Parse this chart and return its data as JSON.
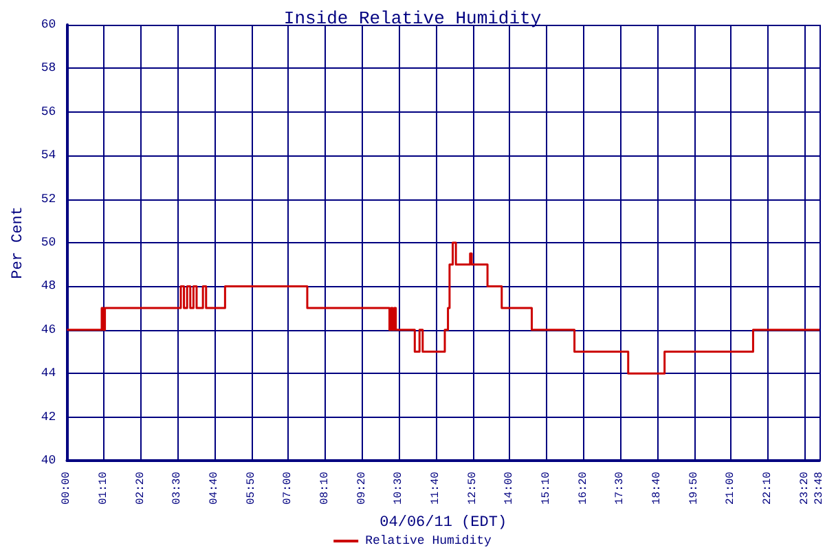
{
  "chart_data": {
    "type": "step",
    "title": "Inside Relative Humidity",
    "xlabel": "04/06/11 (EDT)",
    "ylabel": "Per Cent",
    "xlim": [
      0,
      23.8
    ],
    "xticks": [
      {
        "value": 0,
        "label": "00:00"
      },
      {
        "value": 1.1667,
        "label": "01:10"
      },
      {
        "value": 2.3333,
        "label": "02:20"
      },
      {
        "value": 3.5,
        "label": "03:30"
      },
      {
        "value": 4.6667,
        "label": "04:40"
      },
      {
        "value": 5.8333,
        "label": "05:50"
      },
      {
        "value": 7,
        "label": "07:00"
      },
      {
        "value": 8.1667,
        "label": "08:10"
      },
      {
        "value": 9.3333,
        "label": "09:20"
      },
      {
        "value": 10.5,
        "label": "10:30"
      },
      {
        "value": 11.6667,
        "label": "11:40"
      },
      {
        "value": 12.8333,
        "label": "12:50"
      },
      {
        "value": 14,
        "label": "14:00"
      },
      {
        "value": 15.1667,
        "label": "15:10"
      },
      {
        "value": 16.3333,
        "label": "16:20"
      },
      {
        "value": 17.5,
        "label": "17:30"
      },
      {
        "value": 18.6667,
        "label": "18:40"
      },
      {
        "value": 19.8333,
        "label": "19:50"
      },
      {
        "value": 21,
        "label": "21:00"
      },
      {
        "value": 22.1667,
        "label": "22:10"
      },
      {
        "value": 23.3333,
        "label": "23:20"
      },
      {
        "value": 23.8,
        "label": "23:48"
      }
    ],
    "ylim": [
      40,
      60
    ],
    "yticks": [
      40,
      42,
      44,
      46,
      48,
      50,
      52,
      54,
      56,
      58,
      60
    ],
    "grid": true,
    "legend": "bottom",
    "marker": "none",
    "line_style": "solid",
    "series": [
      {
        "name": "Relative Humidity",
        "color": "#cc0000",
        "x": [
          0,
          1.1,
          1.15,
          1.2,
          3.6,
          3.7,
          3.8,
          3.9,
          4.0,
          4.1,
          4.3,
          4.4,
          5.0,
          7.6,
          10.2,
          10.25,
          10.3,
          10.35,
          10.4,
          11.0,
          11.15,
          11.25,
          11.95,
          12.05,
          12.1,
          12.2,
          12.3,
          12.75,
          12.8,
          13.3,
          13.75,
          14.7,
          16.05,
          17.75,
          18.9,
          21.7,
          23.8
        ],
        "values": [
          46,
          47,
          46,
          47,
          48,
          47,
          48,
          47,
          48,
          47,
          48,
          47,
          48,
          47,
          46,
          47,
          46,
          47,
          46,
          45,
          46,
          45,
          46,
          47,
          49,
          50,
          49,
          49.5,
          49,
          48,
          47,
          46,
          45,
          44,
          45,
          46,
          46
        ]
      }
    ]
  }
}
